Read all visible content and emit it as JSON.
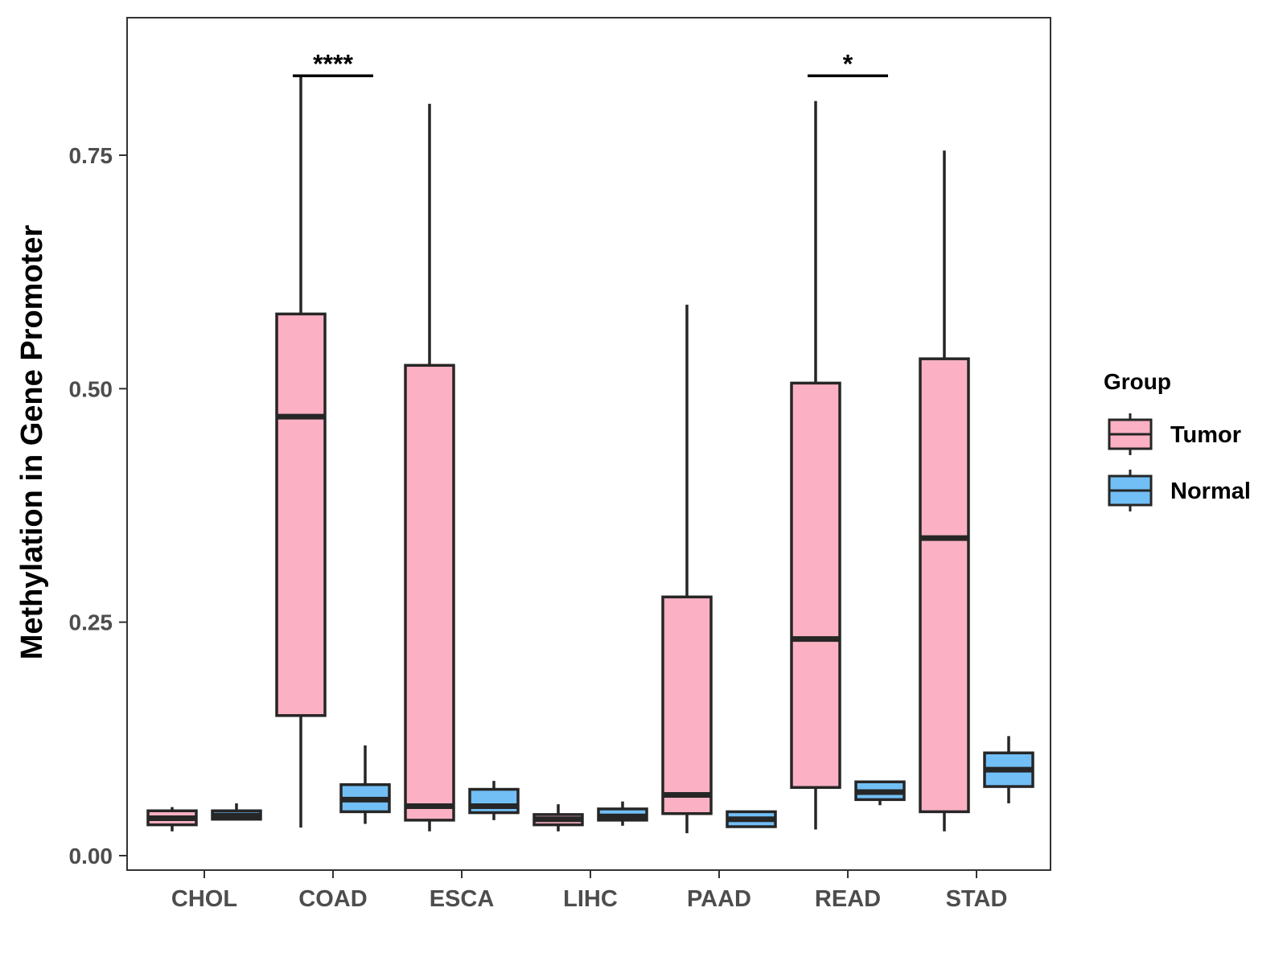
{
  "chart_data": {
    "type": "boxplot",
    "ylabel": "Methylation in Gene Promoter",
    "xlabel": "",
    "ylim": [
      -0.016,
      0.9
    ],
    "yticks": [
      0.0,
      0.25,
      0.5,
      0.75
    ],
    "ytick_labels": [
      "0.00",
      "0.25",
      "0.50",
      "0.75"
    ],
    "categories": [
      "CHOL",
      "COAD",
      "ESCA",
      "LIHC",
      "PAAD",
      "READ",
      "STAD"
    ],
    "legend": {
      "title": "Group",
      "entries": [
        {
          "name": "Tumor",
          "color": "#fbb1c3"
        },
        {
          "name": "Normal",
          "color": "#72bff6"
        }
      ]
    },
    "series": [
      {
        "name": "Tumor",
        "color": "#fbb1c3",
        "boxes": [
          {
            "category": "CHOL",
            "min": 0.026,
            "q1": 0.033,
            "median": 0.04,
            "q3": 0.048,
            "max": 0.052
          },
          {
            "category": "COAD",
            "min": 0.03,
            "q1": 0.15,
            "median": 0.47,
            "q3": 0.58,
            "max": 0.835
          },
          {
            "category": "ESCA",
            "min": 0.026,
            "q1": 0.038,
            "median": 0.053,
            "q3": 0.525,
            "max": 0.805
          },
          {
            "category": "LIHC",
            "min": 0.026,
            "q1": 0.033,
            "median": 0.039,
            "q3": 0.044,
            "max": 0.055
          },
          {
            "category": "PAAD",
            "min": 0.024,
            "q1": 0.045,
            "median": 0.065,
            "q3": 0.277,
            "max": 0.59
          },
          {
            "category": "READ",
            "min": 0.028,
            "q1": 0.073,
            "median": 0.232,
            "q3": 0.506,
            "max": 0.808
          },
          {
            "category": "STAD",
            "min": 0.026,
            "q1": 0.047,
            "median": 0.34,
            "q3": 0.532,
            "max": 0.755
          }
        ]
      },
      {
        "name": "Normal",
        "color": "#72bff6",
        "boxes": [
          {
            "category": "CHOL",
            "min": 0.038,
            "q1": 0.039,
            "median": 0.043,
            "q3": 0.048,
            "max": 0.056
          },
          {
            "category": "COAD",
            "min": 0.034,
            "q1": 0.047,
            "median": 0.06,
            "q3": 0.076,
            "max": 0.118
          },
          {
            "category": "ESCA",
            "min": 0.038,
            "q1": 0.046,
            "median": 0.053,
            "q3": 0.071,
            "max": 0.08
          },
          {
            "category": "LIHC",
            "min": 0.032,
            "q1": 0.038,
            "median": 0.042,
            "q3": 0.05,
            "max": 0.058
          },
          {
            "category": "PAAD",
            "min": 0.03,
            "q1": 0.031,
            "median": 0.039,
            "q3": 0.047,
            "max": 0.047
          },
          {
            "category": "READ",
            "min": 0.054,
            "q1": 0.06,
            "median": 0.068,
            "q3": 0.079,
            "max": 0.079
          },
          {
            "category": "STAD",
            "min": 0.056,
            "q1": 0.074,
            "median": 0.092,
            "q3": 0.11,
            "max": 0.128
          }
        ]
      }
    ],
    "annotations": [
      {
        "category": "COAD",
        "label": "****",
        "y": 0.835
      },
      {
        "category": "READ",
        "label": "*",
        "y": 0.835
      }
    ],
    "grid": false,
    "legend_position": "right"
  }
}
